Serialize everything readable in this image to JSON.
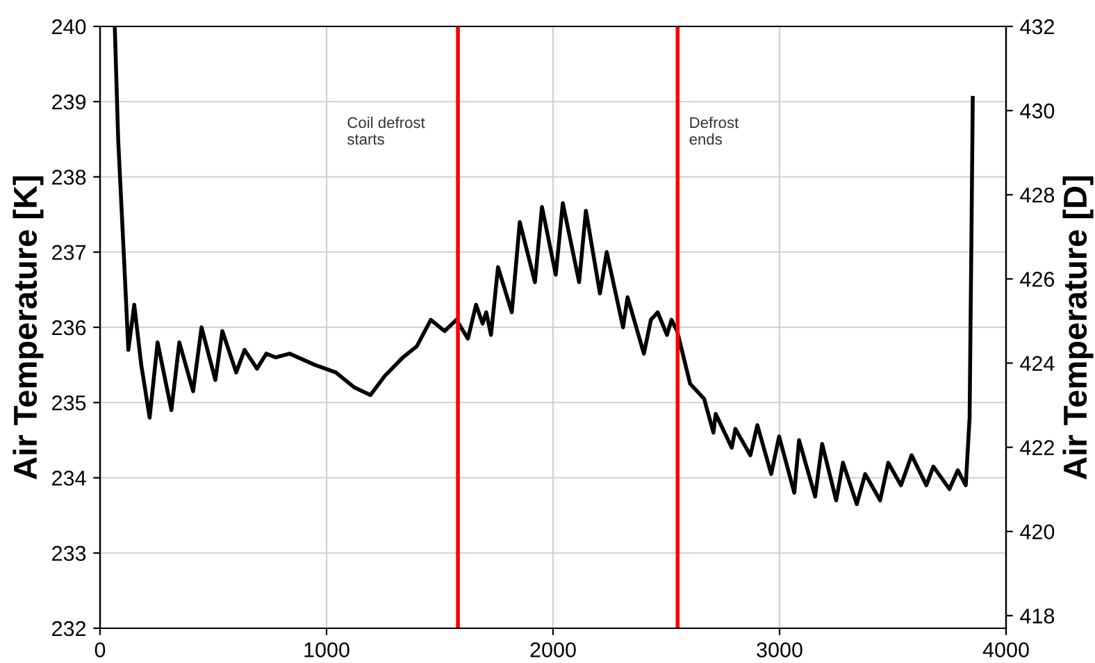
{
  "chart_data": {
    "type": "line",
    "ylabel": "Air Temperature [K]",
    "y2label": "Air Temperature [D]",
    "series": [
      {
        "color": "#000000",
        "x": [
          65,
          80,
          106,
          125,
          151,
          182,
          219,
          254,
          315,
          350,
          411,
          448,
          509,
          540,
          601,
          638,
          693,
          734,
          775,
          837,
          949,
          1041,
          1123,
          1194,
          1256,
          1337,
          1399,
          1460,
          1521,
          1573,
          1624,
          1660,
          1689,
          1705,
          1726,
          1757,
          1818,
          1853,
          1920,
          1951,
          2012,
          2043,
          2115,
          2145,
          2207,
          2237,
          2309,
          2329,
          2401,
          2432,
          2462,
          2503,
          2523,
          2548,
          2605,
          2667,
          2708,
          2718,
          2789,
          2805,
          2871,
          2902,
          2963,
          2998,
          3065,
          3086,
          3157,
          3188,
          3250,
          3280,
          3341,
          3378,
          3444,
          3480,
          3536,
          3583,
          3648,
          3679,
          3750,
          3787,
          3822,
          3839,
          3847,
          3853
        ],
        "values": [
          240,
          238.5,
          236.9,
          235.7,
          236.3,
          235.5,
          234.8,
          235.8,
          234.9,
          235.8,
          235.15,
          236.0,
          235.3,
          235.95,
          235.4,
          235.7,
          235.45,
          235.65,
          235.6,
          235.65,
          235.5,
          235.4,
          235.2,
          235.1,
          235.35,
          235.6,
          235.75,
          236.1,
          235.95,
          236.1,
          235.85,
          236.3,
          236.05,
          236.2,
          235.9,
          236.8,
          236.2,
          237.4,
          236.6,
          237.6,
          236.7,
          237.65,
          236.6,
          237.55,
          236.45,
          237.0,
          236.0,
          236.4,
          235.65,
          236.1,
          236.2,
          235.9,
          236.1,
          235.95,
          235.25,
          235.05,
          234.6,
          234.85,
          234.4,
          234.65,
          234.3,
          234.7,
          234.05,
          234.55,
          233.8,
          234.5,
          233.75,
          234.45,
          233.7,
          234.2,
          233.65,
          234.05,
          233.7,
          234.2,
          233.9,
          234.3,
          233.9,
          234.15,
          233.85,
          234.1,
          233.9,
          234.8,
          237.15,
          239.05
        ]
      }
    ],
    "xlim": [
      0,
      4000
    ],
    "xticks": [
      0,
      1000,
      2000,
      3000,
      4000
    ],
    "ylim": [
      232,
      240
    ],
    "yticks": [
      232,
      233,
      234,
      235,
      236,
      237,
      238,
      239,
      240
    ],
    "y2lim": [
      417.7,
      432
    ],
    "y2ticks": [
      418,
      420,
      422,
      424,
      426,
      428,
      430,
      432
    ],
    "ref_lines": [
      {
        "axis": "x",
        "value": 1580,
        "color": "#ff0000"
      },
      {
        "axis": "x",
        "value": 2550,
        "color": "#ff0000"
      }
    ],
    "annotations": [
      "Coil defrost\nstarts",
      "Defrost\nends"
    ],
    "grid": true,
    "legend": false,
    "marker": "none",
    "line_style": "solid"
  }
}
